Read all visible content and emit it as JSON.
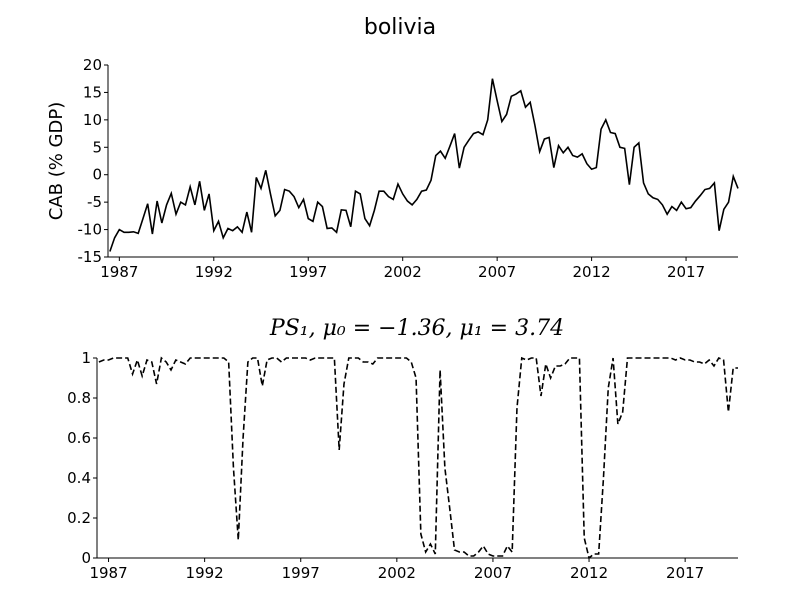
{
  "chart_data": [
    {
      "type": "line",
      "title": "bolivia",
      "y_label": "CAB (% GDP)",
      "color": "#000000",
      "line_style": "solid",
      "x": [
        1986.5,
        1986.75,
        1987,
        1987.25,
        1987.5,
        1987.75,
        1988,
        1988.25,
        1988.5,
        1988.75,
        1989,
        1989.25,
        1989.5,
        1989.75,
        1990,
        1990.25,
        1990.5,
        1990.75,
        1991,
        1991.25,
        1991.5,
        1991.75,
        1992,
        1992.25,
        1992.5,
        1992.75,
        1993,
        1993.25,
        1993.5,
        1993.75,
        1994,
        1994.25,
        1994.5,
        1994.75,
        1995,
        1995.25,
        1995.5,
        1995.75,
        1996,
        1996.25,
        1996.5,
        1996.75,
        1997,
        1997.25,
        1997.5,
        1997.75,
        1998,
        1998.25,
        1998.5,
        1998.75,
        1999,
        1999.25,
        1999.5,
        1999.75,
        2000,
        2000.25,
        2000.5,
        2000.75,
        2001,
        2001.25,
        2001.5,
        2001.75,
        2002,
        2002.25,
        2002.5,
        2002.75,
        2003,
        2003.25,
        2003.5,
        2003.75,
        2004,
        2004.25,
        2004.5,
        2004.75,
        2005,
        2005.25,
        2005.5,
        2005.75,
        2006,
        2006.25,
        2006.5,
        2006.75,
        2007,
        2007.25,
        2007.5,
        2007.75,
        2008,
        2008.25,
        2008.5,
        2008.75,
        2009,
        2009.25,
        2009.5,
        2009.75,
        2010,
        2010.25,
        2010.5,
        2010.75,
        2011,
        2011.25,
        2011.5,
        2011.75,
        2012,
        2012.25,
        2012.5,
        2012.75,
        2013,
        2013.25,
        2013.5,
        2013.75,
        2014,
        2014.25,
        2014.5,
        2014.75,
        2015,
        2015.25,
        2015.5,
        2015.75,
        2016,
        2016.25,
        2016.5,
        2016.75,
        2017,
        2017.25,
        2017.5,
        2017.75,
        2018,
        2018.25,
        2018.5,
        2018.75,
        2019,
        2019.25,
        2019.5,
        2019.75
      ],
      "values": [
        -14,
        -11.5,
        -10,
        -10.5,
        -10.5,
        -10.4,
        -10.7,
        -8,
        -5.3,
        -10.8,
        -4.8,
        -8.8,
        -5.5,
        -3.4,
        -7.2,
        -5,
        -5.5,
        -2.2,
        -5.5,
        -1.2,
        -6.5,
        -3.5,
        -10.2,
        -8.5,
        -11.5,
        -9.8,
        -10.2,
        -9.5,
        -10.5,
        -6.8,
        -10.5,
        -0.5,
        -2.5,
        0.8,
        -3.5,
        -7.5,
        -6.5,
        -2.7,
        -3,
        -4,
        -6,
        -4.5,
        -8,
        -8.5,
        -5,
        -5.8,
        -9.8,
        -9.7,
        -10.5,
        -6.4,
        -6.5,
        -9.5,
        -3,
        -3.5,
        -8,
        -9.3,
        -6.5,
        -3,
        -3,
        -4,
        -4.5,
        -1.7,
        -3.5,
        -4.8,
        -5.5,
        -4.5,
        -3,
        -2.8,
        -1,
        3.5,
        4.3,
        3,
        5.2,
        7.5,
        1.2,
        5,
        6.3,
        7.5,
        7.8,
        7.3,
        10,
        17.5,
        13.5,
        9.7,
        11,
        14.3,
        14.7,
        15.3,
        12.3,
        13.2,
        9,
        4.2,
        6.5,
        6.8,
        1.3,
        5.3,
        4,
        5,
        3.5,
        3.2,
        3.8,
        2,
        1,
        1.3,
        8.3,
        10,
        7.7,
        7.5,
        5,
        4.8,
        -1.8,
        5,
        5.8,
        -1.5,
        -3.5,
        -4.2,
        -4.5,
        -5.5,
        -7.2,
        -5.8,
        -6.5,
        -5,
        -6.2,
        -6,
        -4.8,
        -3.8,
        -2.7,
        -2.5,
        -1.5,
        -10.2,
        -6.3,
        -5,
        -0.3,
        -2.5
      ],
      "xlim": [
        1986.4,
        2019.75
      ],
      "xticks": [
        1987,
        1992,
        1997,
        2002,
        2007,
        2012,
        2017
      ],
      "ylim": [
        -15,
        20
      ],
      "yticks": [
        -15,
        -10,
        -5,
        0,
        5,
        10,
        15,
        20
      ]
    },
    {
      "type": "line",
      "title": "PS₁, μ₀ = −1.36, μ₁ = 3.74",
      "color": "#000000",
      "line_style": "dashed",
      "x": [
        1986.5,
        1986.75,
        1987,
        1987.25,
        1987.5,
        1987.75,
        1988,
        1988.25,
        1988.5,
        1988.75,
        1989,
        1989.25,
        1989.5,
        1989.75,
        1990,
        1990.25,
        1990.5,
        1990.75,
        1991,
        1991.25,
        1991.5,
        1991.75,
        1992,
        1992.25,
        1992.5,
        1992.75,
        1993,
        1993.25,
        1993.5,
        1993.75,
        1994,
        1994.25,
        1994.5,
        1994.75,
        1995,
        1995.25,
        1995.5,
        1995.75,
        1996,
        1996.25,
        1996.5,
        1996.75,
        1997,
        1997.25,
        1997.5,
        1997.75,
        1998,
        1998.25,
        1998.5,
        1998.75,
        1999,
        1999.25,
        1999.5,
        1999.75,
        2000,
        2000.25,
        2000.5,
        2000.75,
        2001,
        2001.25,
        2001.5,
        2001.75,
        2002,
        2002.25,
        2002.5,
        2002.75,
        2003,
        2003.25,
        2003.5,
        2003.75,
        2004,
        2004.25,
        2004.5,
        2004.75,
        2005,
        2005.25,
        2005.5,
        2005.75,
        2006,
        2006.25,
        2006.5,
        2006.75,
        2007,
        2007.25,
        2007.5,
        2007.75,
        2008,
        2008.25,
        2008.5,
        2008.75,
        2009,
        2009.25,
        2009.5,
        2009.75,
        2010,
        2010.25,
        2010.5,
        2010.75,
        2011,
        2011.25,
        2011.5,
        2011.75,
        2012,
        2012.25,
        2012.5,
        2012.75,
        2013,
        2013.25,
        2013.5,
        2013.75,
        2014,
        2014.25,
        2014.5,
        2014.75,
        2015,
        2015.25,
        2015.5,
        2015.75,
        2016,
        2016.25,
        2016.5,
        2016.75,
        2017,
        2017.25,
        2017.5,
        2017.75,
        2018,
        2018.25,
        2018.5,
        2018.75,
        2019,
        2019.25,
        2019.5,
        2019.75
      ],
      "values": [
        0.98,
        0.99,
        0.99,
        1,
        1,
        1,
        1,
        0.92,
        0.99,
        0.91,
        0.99,
        0.98,
        0.87,
        1,
        0.98,
        0.94,
        0.99,
        0.98,
        0.97,
        1,
        1,
        1,
        1,
        1,
        1,
        1,
        1,
        0.98,
        0.45,
        0.09,
        0.6,
        0.98,
        1,
        1,
        0.86,
        0.99,
        1,
        1,
        0.98,
        1,
        1,
        1,
        1,
        1,
        0.99,
        1,
        1,
        1,
        1,
        1,
        0.54,
        0.87,
        1,
        1,
        1,
        0.98,
        0.98,
        0.97,
        1,
        1,
        1,
        1,
        1,
        1,
        1,
        0.98,
        0.9,
        0.12,
        0.03,
        0.07,
        0.02,
        0.94,
        0.45,
        0.25,
        0.04,
        0.03,
        0.03,
        0.01,
        0.01,
        0.03,
        0.06,
        0.02,
        0.01,
        0.01,
        0.01,
        0.06,
        0.03,
        0.75,
        1,
        0.99,
        1,
        1,
        0.81,
        0.97,
        0.9,
        0.96,
        0.96,
        0.97,
        1,
        1,
        1,
        0.1,
        0,
        0.02,
        0.02,
        0.4,
        0.85,
        1,
        0.67,
        0.73,
        1,
        1,
        1,
        1,
        1,
        1,
        1,
        1,
        1,
        1,
        0.99,
        1,
        0.99,
        0.99,
        0.98,
        0.98,
        0.97,
        0.99,
        0.96,
        1,
        0.99,
        0.73,
        0.95,
        0.95
      ],
      "xlim": [
        1986.4,
        2019.75
      ],
      "xticks": [
        1987,
        1992,
        1997,
        2002,
        2007,
        2012,
        2017
      ],
      "ylim": [
        0,
        1
      ],
      "yticks": [
        0,
        0.2,
        0.4,
        0.6,
        0.8,
        1
      ]
    }
  ]
}
